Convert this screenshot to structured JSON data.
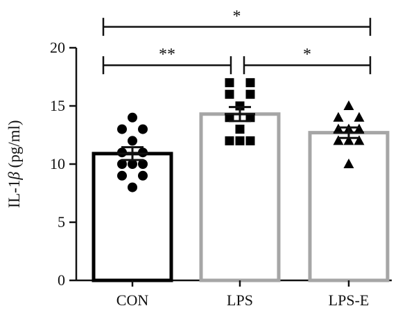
{
  "chart_data": {
    "type": "bar",
    "ylabel_prefix": "IL-1",
    "ylabel_symbol": "β",
    "ylabel_suffix": " (pg/ml)",
    "ylim": [
      0,
      20
    ],
    "yticks": [
      "0",
      "5",
      "10",
      "15",
      "20"
    ],
    "categories": [
      "CON",
      "LPS",
      "LPS-E"
    ],
    "values": [
      10.9,
      14.3,
      12.7
    ],
    "sem": [
      0.55,
      0.6,
      0.45
    ],
    "bar_colors": [
      "#000000",
      "#a6a6a6",
      "#a6a6a6"
    ],
    "markers": [
      "circle",
      "square",
      "triangle"
    ],
    "points": [
      [
        [
          0,
          14
        ],
        [
          -0.25,
          13
        ],
        [
          0.25,
          13
        ],
        [
          0,
          12
        ],
        [
          -0.25,
          11
        ],
        [
          0.25,
          11
        ],
        [
          0,
          10
        ],
        [
          -0.25,
          10
        ],
        [
          0.25,
          10
        ],
        [
          -0.25,
          9
        ],
        [
          0.25,
          9
        ],
        [
          0,
          8
        ]
      ],
      [
        [
          -0.25,
          17
        ],
        [
          0.25,
          17
        ],
        [
          -0.25,
          16
        ],
        [
          0.25,
          16
        ],
        [
          0,
          15
        ],
        [
          -0.25,
          14
        ],
        [
          0.25,
          14
        ],
        [
          0,
          13
        ],
        [
          -0.25,
          12
        ],
        [
          0.25,
          12
        ],
        [
          0,
          12
        ]
      ],
      [
        [
          0,
          15
        ],
        [
          -0.25,
          14
        ],
        [
          0.25,
          14
        ],
        [
          0,
          13
        ],
        [
          -0.25,
          13
        ],
        [
          0.25,
          13
        ],
        [
          -0.25,
          12
        ],
        [
          0.25,
          12
        ],
        [
          0,
          12
        ],
        [
          0,
          10
        ]
      ]
    ],
    "significance": [
      {
        "from": 0,
        "to": 2,
        "label": "*",
        "y": 21.8
      },
      {
        "from": 0,
        "to": 1,
        "label": "**",
        "y": 18.5
      },
      {
        "from": 1,
        "to": 2,
        "label": "*",
        "y": 18.5
      }
    ]
  }
}
